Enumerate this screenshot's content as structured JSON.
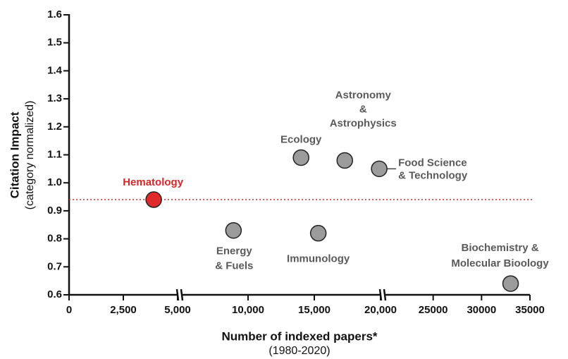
{
  "chart_data": {
    "type": "scatter",
    "xlabel": "Number of indexed papers*",
    "xlabel_sub": "(1980-2020)",
    "ylabel": "Citation Impact",
    "ylabel_sub": "(category normalized)",
    "labels": [
      [
        "Hematology"
      ],
      [
        "Energy",
        "& Fuels"
      ],
      [
        "Ecology"
      ],
      [
        "Immunology"
      ],
      [
        "Astronomy",
        "&",
        "Astrophysics"
      ],
      [
        "Food Science",
        "& Technology"
      ],
      [
        "Biochemistry &",
        "Molecular Bioology"
      ]
    ],
    "x": [
      3900,
      8900,
      14000,
      15300,
      17300,
      19900,
      33000
    ],
    "values": [
      0.94,
      0.83,
      1.09,
      0.82,
      1.08,
      1.05,
      0.64
    ],
    "colors": [
      "#e02a2a",
      "#9b9b9b",
      "#9b9b9b",
      "#9b9b9b",
      "#9b9b9b",
      "#9b9b9b",
      "#9b9b9b"
    ],
    "label_colors": [
      "#d92525",
      "#5a5a5a",
      "#5a5a5a",
      "#5a5a5a",
      "#5a5a5a",
      "#5a5a5a",
      "#5a5a5a"
    ],
    "hline": {
      "value": 0.94,
      "color": "#e02a2a"
    },
    "xlim": [
      [
        0,
        5000
      ],
      [
        5000,
        20000
      ],
      [
        20000,
        35000
      ]
    ],
    "xticks": [
      0,
      {
        "value": 2500,
        "label": "2,500"
      },
      {
        "value": 5000,
        "label": "5,000"
      },
      {
        "value": 10000,
        "label": "10,000"
      },
      {
        "value": 15000,
        "label": "15,000"
      },
      {
        "value": 20000,
        "label": "20,000"
      },
      25000,
      30000,
      35000
    ],
    "ylim": [
      0.6,
      1.6
    ],
    "yticks": [
      0.6,
      0.7,
      0.8,
      0.9,
      {
        "value": 1,
        "label": "1.0"
      },
      1.1,
      1.2,
      1.3,
      1.4,
      1.5,
      1.6
    ]
  }
}
